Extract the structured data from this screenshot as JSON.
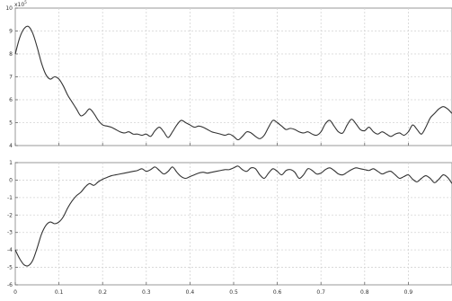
{
  "chart_data": [
    {
      "type": "line",
      "title": "",
      "xlabel": "",
      "ylabel": "",
      "exponent_label": "x10",
      "exponent_power": "5",
      "xlim": [
        0,
        1
      ],
      "ylim": [
        4,
        10
      ],
      "grid": true,
      "x_ticks": [
        "0",
        "0.1",
        "0.2",
        "0.3",
        "0.4",
        "0.5",
        "0.6",
        "0.7",
        "0.8",
        "0.9"
      ],
      "y_ticks": [
        "10",
        "9",
        "8",
        "7",
        "6",
        "5",
        "4"
      ],
      "series": [
        {
          "color": "#333333",
          "x": [
            0,
            0.01,
            0.02,
            0.03,
            0.04,
            0.05,
            0.06,
            0.07,
            0.08,
            0.09,
            0.1,
            0.11,
            0.12,
            0.13,
            0.14,
            0.15,
            0.16,
            0.17,
            0.18,
            0.19,
            0.2,
            0.21,
            0.22,
            0.23,
            0.24,
            0.25,
            0.26,
            0.27,
            0.28,
            0.29,
            0.3,
            0.31,
            0.32,
            0.33,
            0.34,
            0.35,
            0.36,
            0.37,
            0.38,
            0.39,
            0.4,
            0.41,
            0.42,
            0.43,
            0.44,
            0.45,
            0.46,
            0.47,
            0.48,
            0.49,
            0.5,
            0.51,
            0.52,
            0.53,
            0.54,
            0.55,
            0.56,
            0.57,
            0.58,
            0.59,
            0.6,
            0.61,
            0.62,
            0.63,
            0.64,
            0.65,
            0.66,
            0.67,
            0.68,
            0.69,
            0.7,
            0.71,
            0.72,
            0.73,
            0.74,
            0.75,
            0.76,
            0.77,
            0.78,
            0.79,
            0.8,
            0.81,
            0.82,
            0.83,
            0.84,
            0.85,
            0.86,
            0.87,
            0.88,
            0.89,
            0.9,
            0.91,
            0.92,
            0.93,
            0.94,
            0.95,
            0.96,
            0.97,
            0.98,
            0.99,
            1.0
          ],
          "y": [
            8.0,
            8.7,
            9.1,
            9.2,
            8.9,
            8.3,
            7.6,
            7.1,
            6.9,
            7.0,
            6.9,
            6.6,
            6.2,
            5.9,
            5.6,
            5.3,
            5.4,
            5.6,
            5.4,
            5.1,
            4.9,
            4.85,
            4.8,
            4.7,
            4.6,
            4.55,
            4.6,
            4.5,
            4.5,
            4.45,
            4.5,
            4.4,
            4.65,
            4.8,
            4.6,
            4.35,
            4.6,
            4.9,
            5.1,
            5.0,
            4.9,
            4.8,
            4.85,
            4.8,
            4.7,
            4.6,
            4.55,
            4.5,
            4.45,
            4.5,
            4.4,
            4.25,
            4.4,
            4.6,
            4.55,
            4.4,
            4.3,
            4.45,
            4.8,
            5.1,
            5.0,
            4.85,
            4.7,
            4.75,
            4.7,
            4.6,
            4.55,
            4.6,
            4.5,
            4.45,
            4.6,
            4.95,
            5.1,
            4.85,
            4.6,
            4.55,
            4.9,
            5.15,
            4.95,
            4.7,
            4.65,
            4.8,
            4.6,
            4.5,
            4.6,
            4.5,
            4.4,
            4.5,
            4.55,
            4.45,
            4.6,
            4.9,
            4.7,
            4.5,
            4.8,
            5.2,
            5.4,
            5.6,
            5.7,
            5.6,
            5.4
          ]
        }
      ]
    },
    {
      "type": "line",
      "title": "",
      "xlabel": "",
      "ylabel": "",
      "xlim": [
        0,
        1
      ],
      "ylim": [
        -6,
        1
      ],
      "grid": true,
      "x_ticks": [
        "0",
        "0.1",
        "0.2",
        "0.3",
        "0.4",
        "0.5",
        "0.6",
        "0.7",
        "0.8",
        "0.9"
      ],
      "y_ticks": [
        "1",
        "0",
        "-1",
        "-2",
        "-3",
        "-4",
        "-5",
        "-6"
      ],
      "series": [
        {
          "color": "#333333",
          "x": [
            0,
            0.01,
            0.02,
            0.03,
            0.04,
            0.05,
            0.06,
            0.07,
            0.08,
            0.09,
            0.1,
            0.11,
            0.12,
            0.13,
            0.14,
            0.15,
            0.16,
            0.17,
            0.18,
            0.19,
            0.2,
            0.21,
            0.22,
            0.23,
            0.24,
            0.25,
            0.26,
            0.27,
            0.28,
            0.29,
            0.3,
            0.31,
            0.32,
            0.33,
            0.34,
            0.35,
            0.36,
            0.37,
            0.38,
            0.39,
            0.4,
            0.41,
            0.42,
            0.43,
            0.44,
            0.45,
            0.46,
            0.47,
            0.48,
            0.49,
            0.5,
            0.51,
            0.52,
            0.53,
            0.54,
            0.55,
            0.56,
            0.57,
            0.58,
            0.59,
            0.6,
            0.61,
            0.62,
            0.63,
            0.64,
            0.65,
            0.66,
            0.67,
            0.68,
            0.69,
            0.7,
            0.71,
            0.72,
            0.73,
            0.74,
            0.75,
            0.76,
            0.77,
            0.78,
            0.79,
            0.8,
            0.81,
            0.82,
            0.83,
            0.84,
            0.85,
            0.86,
            0.87,
            0.88,
            0.89,
            0.9,
            0.91,
            0.92,
            0.93,
            0.94,
            0.95,
            0.96,
            0.97,
            0.98,
            0.99,
            1.0
          ],
          "y": [
            -4.0,
            -4.5,
            -4.85,
            -4.9,
            -4.6,
            -3.9,
            -3.1,
            -2.6,
            -2.4,
            -2.5,
            -2.4,
            -2.1,
            -1.6,
            -1.2,
            -0.9,
            -0.7,
            -0.4,
            -0.2,
            -0.3,
            -0.1,
            0.05,
            0.15,
            0.25,
            0.3,
            0.35,
            0.4,
            0.45,
            0.5,
            0.55,
            0.65,
            0.5,
            0.6,
            0.75,
            0.55,
            0.35,
            0.5,
            0.75,
            0.45,
            0.2,
            0.1,
            0.2,
            0.3,
            0.4,
            0.45,
            0.4,
            0.45,
            0.5,
            0.55,
            0.6,
            0.6,
            0.7,
            0.8,
            0.6,
            0.5,
            0.7,
            0.65,
            0.3,
            0.1,
            0.4,
            0.65,
            0.5,
            0.3,
            0.55,
            0.6,
            0.45,
            0.1,
            0.3,
            0.65,
            0.55,
            0.35,
            0.4,
            0.6,
            0.7,
            0.55,
            0.35,
            0.3,
            0.45,
            0.6,
            0.7,
            0.65,
            0.6,
            0.55,
            0.65,
            0.5,
            0.35,
            0.45,
            0.5,
            0.3,
            0.1,
            0.2,
            0.3,
            0.05,
            -0.1,
            0.1,
            0.25,
            0.1,
            -0.15,
            0.05,
            0.3,
            0.15,
            -0.2
          ]
        }
      ]
    }
  ]
}
